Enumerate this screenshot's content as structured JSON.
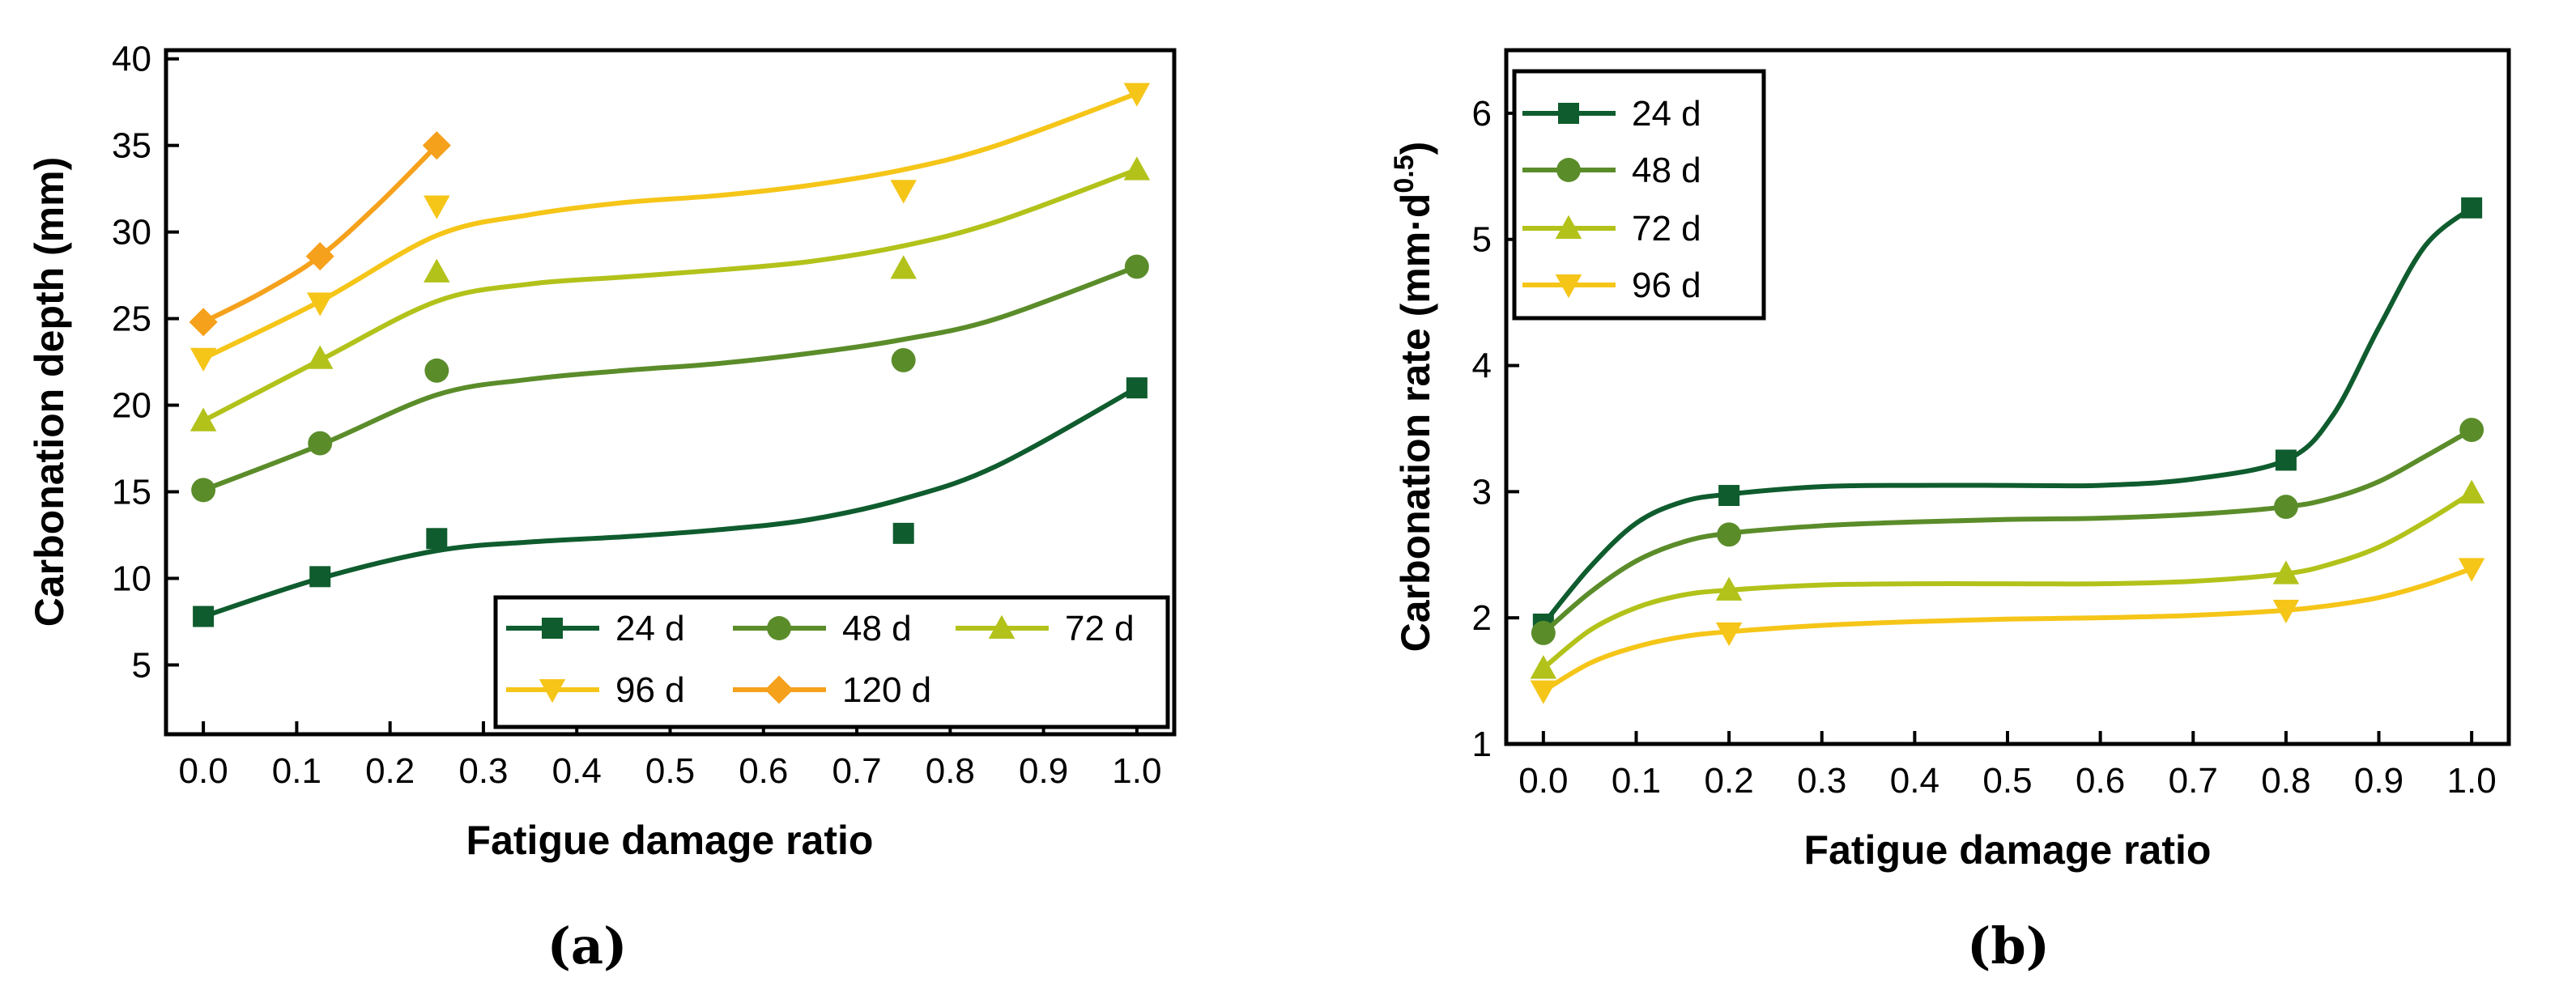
{
  "colors": {
    "24 d": "#0f5c2e",
    "48 d": "#5b8c2a",
    "72 d": "#b2c21a",
    "96 d": "#f5c518",
    "120 d": "#f5a11c"
  },
  "chart_data": [
    {
      "panel": "a",
      "panel_label": "(a)",
      "type": "scatter",
      "fit": "smooth curve",
      "title": "",
      "xlabel": "Fatigue damage ratio",
      "ylabel": "Carbonation depth (mm)",
      "xlim": [
        -0.04,
        1.04
      ],
      "ylim": [
        1,
        40.5
      ],
      "xticks": [
        "0.0",
        "0.1",
        "0.2",
        "0.3",
        "0.4",
        "0.5",
        "0.6",
        "0.7",
        "0.8",
        "0.9",
        "1.0"
      ],
      "xtick_values": [
        0,
        0.1,
        0.2,
        0.3,
        0.4,
        0.5,
        0.6,
        0.7,
        0.8,
        0.9,
        1.0
      ],
      "yticks": [
        "5",
        "10",
        "15",
        "20",
        "25",
        "30",
        "35",
        "40"
      ],
      "ytick_values": [
        5,
        10,
        15,
        20,
        25,
        30,
        35,
        40
      ],
      "legend_position": "bottom-right",
      "legend_columns": 3,
      "series": [
        {
          "name": "24 d",
          "marker": "square",
          "x": [
            0,
            0.125,
            0.25,
            0.75,
            1.0
          ],
          "values": [
            7.8,
            10.1,
            12.3,
            12.6,
            21.0
          ],
          "fit_x": [
            0,
            0.125,
            0.25,
            0.35,
            0.45,
            0.55,
            0.65,
            0.75,
            0.85,
            1.0
          ],
          "fit_y": [
            7.8,
            10.0,
            11.6,
            12.1,
            12.4,
            12.8,
            13.4,
            14.6,
            16.5,
            21.0
          ]
        },
        {
          "name": "48 d",
          "marker": "circle",
          "x": [
            0,
            0.125,
            0.25,
            0.75,
            1.0
          ],
          "values": [
            15.1,
            17.8,
            22.0,
            22.6,
            28.0
          ],
          "fit_x": [
            0,
            0.125,
            0.25,
            0.35,
            0.45,
            0.55,
            0.65,
            0.75,
            0.85,
            1.0
          ],
          "fit_y": [
            15.1,
            17.7,
            20.6,
            21.5,
            22.0,
            22.4,
            23.0,
            23.8,
            25.0,
            28.0
          ]
        },
        {
          "name": "72 d",
          "marker": "triangle-up",
          "x": [
            0,
            0.125,
            0.25,
            0.75,
            1.0
          ],
          "values": [
            19.1,
            22.7,
            27.7,
            27.9,
            33.6
          ],
          "fit_x": [
            0,
            0.125,
            0.25,
            0.35,
            0.45,
            0.55,
            0.65,
            0.75,
            0.85,
            1.0
          ],
          "fit_y": [
            19.1,
            22.6,
            26.0,
            27.0,
            27.4,
            27.8,
            28.3,
            29.2,
            30.6,
            33.6
          ]
        },
        {
          "name": "96 d",
          "marker": "triangle-down",
          "x": [
            0,
            0.125,
            0.25,
            0.75,
            1.0
          ],
          "values": [
            22.7,
            25.9,
            31.5,
            32.4,
            38.0
          ],
          "fit_x": [
            0,
            0.125,
            0.25,
            0.35,
            0.45,
            0.55,
            0.65,
            0.75,
            0.85,
            1.0
          ],
          "fit_y": [
            22.7,
            26.0,
            29.8,
            31.0,
            31.7,
            32.1,
            32.7,
            33.6,
            35.0,
            38.0
          ]
        },
        {
          "name": "120 d",
          "marker": "diamond",
          "x": [
            0,
            0.125,
            0.25
          ],
          "values": [
            24.8,
            28.6,
            35.0
          ],
          "fit_x": [
            0,
            0.0625,
            0.125,
            0.1875,
            0.25
          ],
          "fit_y": [
            24.8,
            26.5,
            28.6,
            31.6,
            35.0
          ]
        }
      ]
    },
    {
      "panel": "b",
      "panel_label": "(b)",
      "type": "scatter",
      "fit": "smooth curve",
      "title": "",
      "xlabel": "Fatigue damage ratio",
      "ylabel": "Carbonation rate (mm·d",
      "ylabel_sup": "0.5",
      "ylabel_close": ")",
      "xlim": [
        -0.04,
        1.04
      ],
      "ylim": [
        1,
        6.5
      ],
      "xticks": [
        "0.0",
        "0.1",
        "0.2",
        "0.3",
        "0.4",
        "0.5",
        "0.6",
        "0.7",
        "0.8",
        "0.9",
        "1.0"
      ],
      "xtick_values": [
        0,
        0.1,
        0.2,
        0.3,
        0.4,
        0.5,
        0.6,
        0.7,
        0.8,
        0.9,
        1.0
      ],
      "yticks": [
        "1",
        "2",
        "3",
        "4",
        "5",
        "6"
      ],
      "ytick_values": [
        1,
        2,
        3,
        4,
        5,
        6
      ],
      "legend_position": "top-left",
      "legend_columns": 1,
      "series": [
        {
          "name": "24 d",
          "marker": "square",
          "x": [
            0,
            0.2,
            0.8,
            1.0
          ],
          "values": [
            1.95,
            2.97,
            3.25,
            5.25
          ],
          "fit_x": [
            0,
            0.05,
            0.1,
            0.15,
            0.2,
            0.3,
            0.4,
            0.5,
            0.6,
            0.7,
            0.8,
            0.85,
            0.9,
            0.95,
            1.0
          ],
          "fit_y": [
            1.95,
            2.4,
            2.75,
            2.92,
            2.98,
            3.04,
            3.05,
            3.05,
            3.05,
            3.1,
            3.25,
            3.6,
            4.3,
            4.95,
            5.25
          ]
        },
        {
          "name": "48 d",
          "marker": "circle",
          "x": [
            0,
            0.2,
            0.8,
            1.0
          ],
          "values": [
            1.88,
            2.66,
            2.88,
            3.49
          ],
          "fit_x": [
            0,
            0.05,
            0.1,
            0.15,
            0.2,
            0.3,
            0.4,
            0.5,
            0.6,
            0.7,
            0.8,
            0.85,
            0.9,
            0.95,
            1.0
          ],
          "fit_y": [
            1.88,
            2.2,
            2.45,
            2.6,
            2.67,
            2.73,
            2.76,
            2.78,
            2.79,
            2.82,
            2.88,
            2.95,
            3.08,
            3.28,
            3.49
          ]
        },
        {
          "name": "72 d",
          "marker": "triangle-up",
          "x": [
            0,
            0.2,
            0.8,
            1.0
          ],
          "values": [
            1.6,
            2.22,
            2.35,
            2.99
          ],
          "fit_x": [
            0,
            0.05,
            0.1,
            0.15,
            0.2,
            0.3,
            0.4,
            0.5,
            0.6,
            0.7,
            0.8,
            0.85,
            0.9,
            0.95,
            1.0
          ],
          "fit_y": [
            1.6,
            1.9,
            2.08,
            2.18,
            2.22,
            2.26,
            2.27,
            2.27,
            2.27,
            2.29,
            2.35,
            2.43,
            2.56,
            2.76,
            2.99
          ]
        },
        {
          "name": "96 d",
          "marker": "triangle-down",
          "x": [
            0,
            0.2,
            0.8,
            1.0
          ],
          "values": [
            1.42,
            1.88,
            2.06,
            2.39
          ],
          "fit_x": [
            0,
            0.05,
            0.1,
            0.15,
            0.2,
            0.3,
            0.4,
            0.5,
            0.6,
            0.7,
            0.8,
            0.85,
            0.9,
            0.95,
            1.0
          ],
          "fit_y": [
            1.42,
            1.64,
            1.77,
            1.85,
            1.89,
            1.94,
            1.97,
            1.99,
            2.0,
            2.02,
            2.06,
            2.1,
            2.16,
            2.26,
            2.39
          ]
        }
      ]
    }
  ]
}
